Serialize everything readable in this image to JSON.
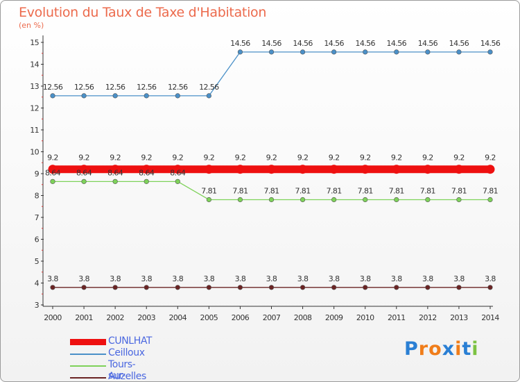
{
  "chart_data": {
    "type": "line",
    "title": "Evolution du Taux de Taxe d'Habitation",
    "ylabel": "(en %)",
    "xlabel": "",
    "ylim": [
      3,
      15
    ],
    "yticks": [
      3,
      4,
      5,
      6,
      7,
      8,
      9,
      10,
      11,
      12,
      13,
      14,
      15
    ],
    "x": [
      2000,
      2001,
      2002,
      2003,
      2004,
      2005,
      2006,
      2007,
      2008,
      2009,
      2010,
      2011,
      2012,
      2013,
      2014
    ],
    "series": [
      {
        "name": "CUNLHAT",
        "color": "#ee1010",
        "values": [
          9.2,
          9.2,
          9.2,
          9.2,
          9.2,
          9.2,
          9.2,
          9.2,
          9.2,
          9.2,
          9.2,
          9.2,
          9.2,
          9.2,
          9.2
        ],
        "labels": [
          "9.2",
          "9.2",
          "9.2",
          "9.2",
          "9.2",
          "9.2",
          "9.2",
          "9.2",
          "9.2",
          "9.2",
          "9.2",
          "9.2",
          "9.2",
          "9.2",
          "9.2"
        ]
      },
      {
        "name": "Ceilloux",
        "color": "#4a90c8",
        "values": [
          12.56,
          12.56,
          12.56,
          12.56,
          12.56,
          12.56,
          14.56,
          14.56,
          14.56,
          14.56,
          14.56,
          14.56,
          14.56,
          14.56,
          14.56
        ],
        "labels": [
          "12.56",
          "12.56",
          "12.56",
          "12.56",
          "12.56",
          "12.56",
          "14.56",
          "14.56",
          "14.56",
          "14.56",
          "14.56",
          "14.56",
          "14.56",
          "14.56",
          "14.56"
        ]
      },
      {
        "name": "Tours-sur-Meymont",
        "color": "#7ed25a",
        "values": [
          8.64,
          8.64,
          8.64,
          8.64,
          8.64,
          7.81,
          7.81,
          7.81,
          7.81,
          7.81,
          7.81,
          7.81,
          7.81,
          7.81,
          7.81
        ],
        "labels": [
          "8.64",
          "8.64",
          "8.64",
          "8.64",
          "8.64",
          "7.81",
          "7.81",
          "7.81",
          "7.81",
          "7.81",
          "7.81",
          "7.81",
          "7.81",
          "7.81",
          "7.81"
        ]
      },
      {
        "name": "Auzelles",
        "color": "#6b2424",
        "values": [
          3.8,
          3.8,
          3.8,
          3.8,
          3.8,
          3.8,
          3.8,
          3.8,
          3.8,
          3.8,
          3.8,
          3.8,
          3.8,
          3.8,
          3.8
        ],
        "labels": [
          "3.8",
          "3.8",
          "3.8",
          "3.8",
          "3.8",
          "3.8",
          "3.8",
          "3.8",
          "3.8",
          "3.8",
          "3.8",
          "3.8",
          "3.8",
          "3.8",
          "3.8"
        ]
      }
    ],
    "grid": false,
    "legend_position": "bottom-left"
  },
  "logo": {
    "text": [
      "P",
      "r",
      "o",
      "x",
      "i",
      "t",
      "i"
    ],
    "colors": [
      "#2a7fd4",
      "#f07d1a",
      "#f07d1a",
      "#2a7fd4",
      "#f07d1a",
      "#2a7fd4",
      "#7cc242"
    ]
  }
}
